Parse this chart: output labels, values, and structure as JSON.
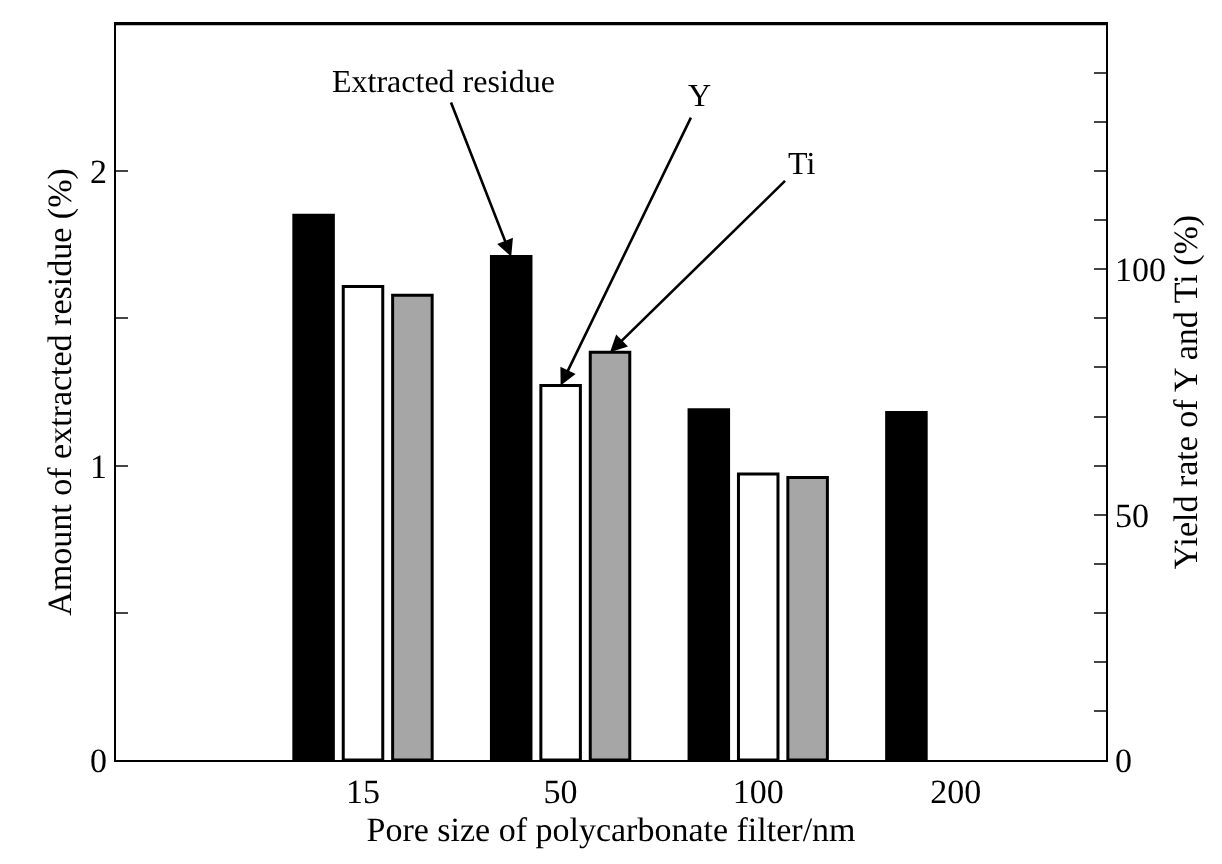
{
  "chart_data": {
    "type": "bar",
    "xlabel": "Pore size of polycarbonate filter/nm",
    "ylabel": "Amount of extracted residue (%)",
    "y2label": "Yield rate of Y and Ti (%)",
    "categories": [
      "15",
      "50",
      "100",
      "200"
    ],
    "series": [
      {
        "name": "Extracted residue",
        "color": "#000000",
        "values": [
          1.85,
          1.71,
          1.19,
          1.18
        ]
      },
      {
        "name": "Y",
        "color": "#ffffff",
        "axis": "y2",
        "values": [
          96.5,
          76.3,
          58.3,
          null
        ]
      },
      {
        "name": "Ti",
        "color": "#a6a6a6",
        "axis": "y2",
        "values": [
          94.7,
          83.1,
          57.6,
          null
        ]
      }
    ],
    "ylim": [
      0,
      2.5
    ],
    "yticks": [
      0,
      {
        "value": 0.5,
        "label": null
      },
      1,
      {
        "value": 1.5,
        "label": null
      },
      2
    ],
    "y2lim": [
      0,
      150
    ],
    "y2ticks": [
      0,
      {
        "value": 10,
        "label": null
      },
      {
        "value": 20,
        "label": null
      },
      {
        "value": 30,
        "label": null
      },
      {
        "value": 40,
        "label": null
      },
      50,
      {
        "value": 60,
        "label": null
      },
      {
        "value": 70,
        "label": null
      },
      {
        "value": 80,
        "label": null
      },
      {
        "value": 90,
        "label": null
      },
      100,
      {
        "value": 110,
        "label": null
      },
      {
        "value": 120,
        "label": null
      },
      {
        "value": 130,
        "label": null
      },
      {
        "value": 140,
        "label": null
      }
    ],
    "legend": false
  }
}
